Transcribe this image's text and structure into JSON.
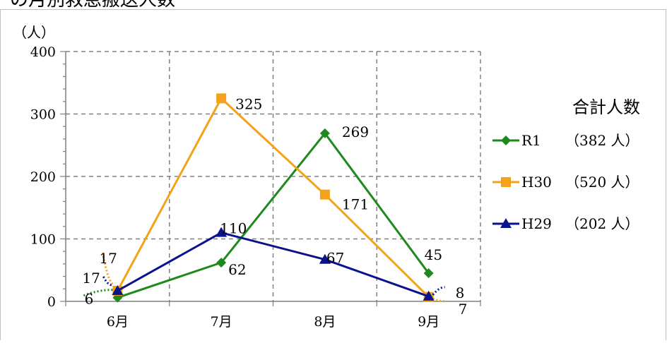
{
  "header_fragment": "の月別救急搬送人数",
  "chart_data": {
    "type": "line",
    "categories": [
      "6月",
      "7月",
      "8月",
      "9月"
    ],
    "ylabel": "（人）",
    "ylim": [
      0,
      400
    ],
    "yticks": [
      0,
      100,
      200,
      300,
      400
    ],
    "grid": true,
    "legend_title": "合計人数",
    "legend_position": "right",
    "series": [
      {
        "name": "R1",
        "total_label": "（382 人）",
        "values": [
          6,
          62,
          269,
          45
        ],
        "color": "#1e8a1e",
        "marker": "diamond",
        "labels": [
          "6",
          "62",
          "269",
          "45"
        ]
      },
      {
        "name": "H30",
        "total_label": "（520 人）",
        "values": [
          17,
          325,
          171,
          7
        ],
        "color": "#f4a21a",
        "marker": "square",
        "labels": [
          "17",
          "325",
          "171",
          "7"
        ]
      },
      {
        "name": "H29",
        "total_label": "（202 人）",
        "values": [
          17,
          110,
          67,
          8
        ],
        "color": "#0b128f",
        "marker": "triangle",
        "labels": [
          "17",
          "110",
          "67",
          "8"
        ]
      }
    ]
  }
}
